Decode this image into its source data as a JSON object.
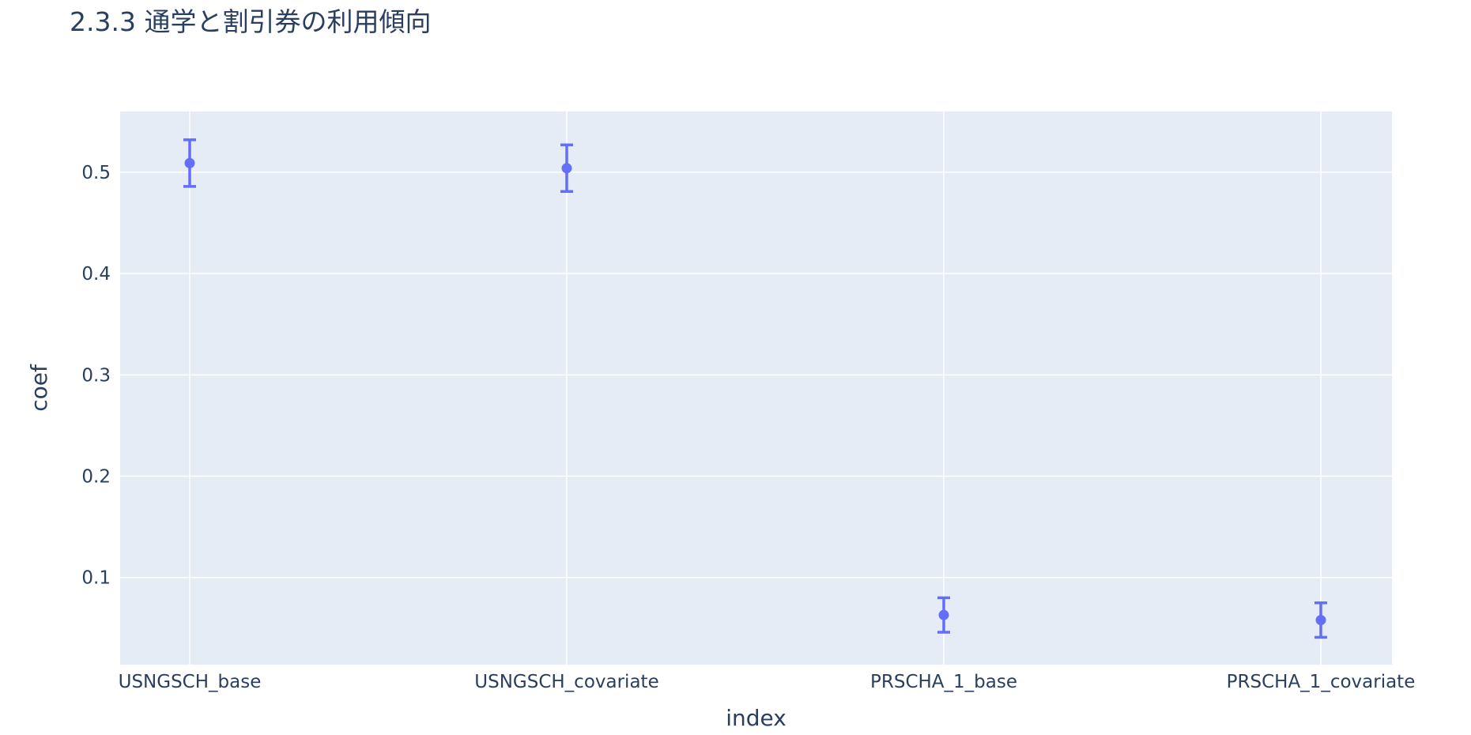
{
  "chart_data": {
    "type": "scatter",
    "title": "2.3.3 通学と割引券の利用傾向",
    "xlabel": "index",
    "ylabel": "coef",
    "categories": [
      "USNGSCH_base",
      "USNGSCH_covariate",
      "PRSCHA_1_base",
      "PRSCHA_1_covariate"
    ],
    "values": [
      0.509,
      0.504,
      0.063,
      0.058
    ],
    "error_low": [
      0.486,
      0.481,
      0.046,
      0.041
    ],
    "error_high": [
      0.532,
      0.527,
      0.08,
      0.075
    ],
    "ylim": [
      0.014,
      0.56
    ],
    "yticks": [
      0.1,
      0.2,
      0.3,
      0.4,
      0.5
    ],
    "ytick_labels": [
      "0.1",
      "0.2",
      "0.3",
      "0.4",
      "0.5"
    ],
    "grid": true,
    "legend": "none",
    "colors": {
      "marker": "#636efa",
      "plot_bg": "#e5ecf6",
      "grid": "#ffffff",
      "text": "#2a3f5f"
    }
  }
}
